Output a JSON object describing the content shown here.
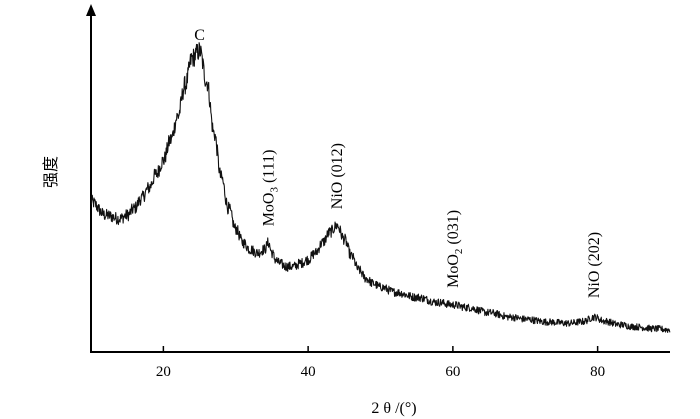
{
  "chart_data": {
    "type": "line",
    "title": "",
    "xlabel": "2 θ /(°)",
    "ylabel": "强度",
    "xlim": [
      10,
      90
    ],
    "xticks": [
      20,
      40,
      60,
      80
    ],
    "ylim": [
      0,
      100
    ],
    "y_tick_labels_shown": false,
    "grid": false,
    "legend": "none",
    "series": [
      {
        "color": "#111111",
        "x": [
          10,
          12,
          14,
          15,
          16,
          17,
          18,
          19,
          20,
          21,
          22,
          23,
          24,
          25,
          26,
          27,
          28,
          29,
          30,
          31,
          32,
          33,
          34,
          34.5,
          35,
          35.5,
          36,
          37,
          38,
          39,
          40,
          41,
          42,
          43,
          44,
          45,
          46,
          47,
          48,
          49,
          50,
          52,
          55,
          58,
          60,
          62,
          65,
          68,
          70,
          73,
          76,
          78,
          79.5,
          81,
          83,
          85,
          88,
          90
        ],
        "y": [
          44,
          40,
          39,
          40,
          42,
          45,
          48,
          52,
          56,
          62,
          69,
          78,
          86,
          88,
          79,
          64,
          51,
          42,
          36,
          32,
          30,
          29,
          30,
          32,
          29,
          27,
          26,
          25,
          25,
          26,
          27,
          29,
          32,
          35,
          37,
          33,
          28,
          24,
          21.5,
          20,
          19,
          17.5,
          16,
          14.5,
          13.8,
          13,
          11.5,
          10.2,
          9.6,
          8.8,
          8.4,
          8.9,
          10.2,
          9,
          8,
          7.4,
          6.8,
          6.5
        ]
      }
    ],
    "annotations": [
      {
        "text": "C",
        "x": 25,
        "y": 90
      },
      {
        "text": "MoO",
        "sub": "3",
        "rest": " (111)",
        "x": 34.5,
        "y": 35
      },
      {
        "text": "NiO (012)",
        "x": 44,
        "y": 40
      },
      {
        "text": "MoO",
        "sub": "2",
        "rest": " (031)",
        "x": 60,
        "y": 17
      },
      {
        "text": "NiO (202)",
        "x": 79.5,
        "y": 14
      }
    ]
  }
}
